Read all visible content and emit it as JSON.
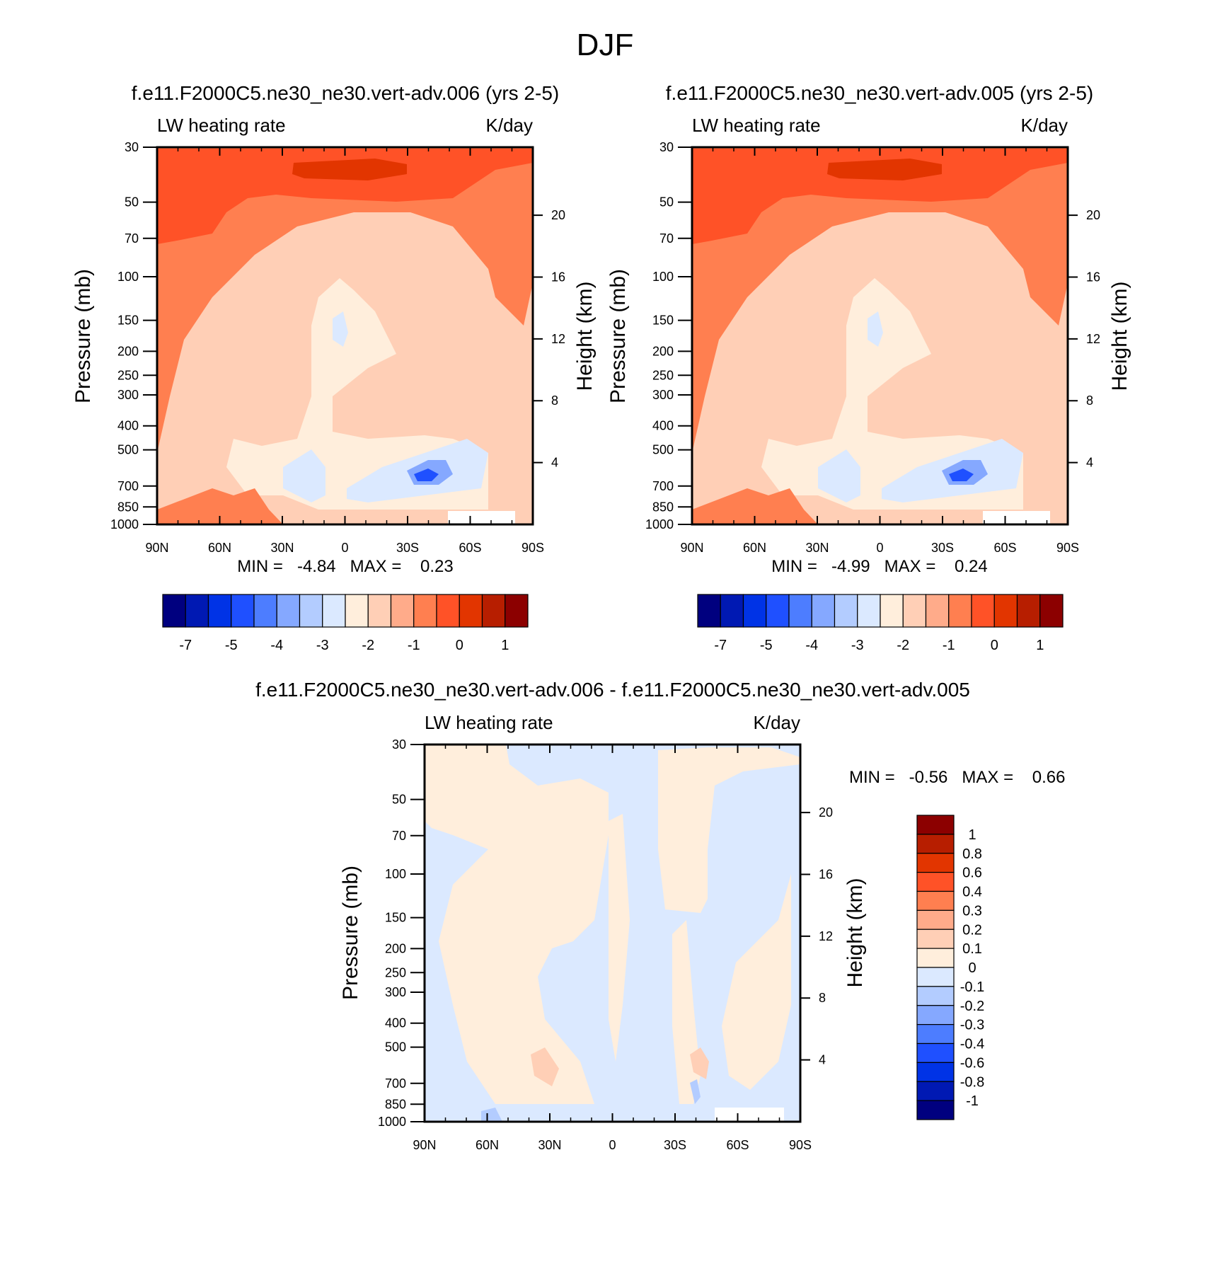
{
  "title": "DJF",
  "colors": {
    "main_scale": [
      "#00007f",
      "#0019b3",
      "#0033e6",
      "#1f50ff",
      "#4d7dff",
      "#85a8ff",
      "#b3ccff",
      "#dbe9ff",
      "#ffeedc",
      "#ffcfb6",
      "#ffab8a",
      "#ff7f50",
      "#ff5227",
      "#e23500",
      "#b71e00",
      "#8c0000"
    ],
    "diff_scale": [
      "#00007f",
      "#0019b3",
      "#0033e6",
      "#1f50ff",
      "#4d7dff",
      "#85a8ff",
      "#b3ccff",
      "#dbe9ff",
      "#ffeedc",
      "#ffcfb6",
      "#ffab8a",
      "#ff7f50",
      "#ff5227",
      "#e23500",
      "#b71e00",
      "#8c0000"
    ]
  },
  "chart_data": [
    {
      "type": "contour",
      "title": "f.e11.F2000C5.ne30_ne30.vert-adv.006 (yrs 2-5)",
      "left_subtitle": "LW heating rate",
      "right_subtitle": "K/day",
      "ylabel": "Pressure (mb)",
      "ylabel_right": "Height (km)",
      "x_ticks": [
        "90N",
        "60N",
        "30N",
        "0",
        "30S",
        "60S",
        "90S"
      ],
      "y_ticks": [
        30,
        50,
        70,
        100,
        150,
        200,
        250,
        300,
        400,
        500,
        700,
        850,
        1000
      ],
      "y_right_ticks": [
        20,
        16,
        12,
        8,
        4
      ],
      "ylim": [
        30,
        1000
      ],
      "min_max": "MIN =   -4.84   MAX =    0.23",
      "colorbar": {
        "orientation": "horizontal",
        "labels": [
          "-7",
          "-5",
          "-4",
          "-3",
          "-2",
          "-1",
          "0",
          "1"
        ]
      }
    },
    {
      "type": "contour",
      "title": "f.e11.F2000C5.ne30_ne30.vert-adv.005 (yrs 2-5)",
      "left_subtitle": "LW heating rate",
      "right_subtitle": "K/day",
      "ylabel": "Pressure (mb)",
      "ylabel_right": "Height (km)",
      "x_ticks": [
        "90N",
        "60N",
        "30N",
        "0",
        "30S",
        "60S",
        "90S"
      ],
      "y_ticks": [
        30,
        50,
        70,
        100,
        150,
        200,
        250,
        300,
        400,
        500,
        700,
        850,
        1000
      ],
      "y_right_ticks": [
        20,
        16,
        12,
        8,
        4
      ],
      "ylim": [
        30,
        1000
      ],
      "min_max": "MIN =   -4.99   MAX =    0.24",
      "colorbar": {
        "orientation": "horizontal",
        "labels": [
          "-7",
          "-5",
          "-4",
          "-3",
          "-2",
          "-1",
          "0",
          "1"
        ]
      }
    },
    {
      "type": "contour",
      "title": "f.e11.F2000C5.ne30_ne30.vert-adv.006 - f.e11.F2000C5.ne30_ne30.vert-adv.005",
      "left_subtitle": "LW heating rate",
      "right_subtitle": "K/day",
      "ylabel": "Pressure (mb)",
      "ylabel_right": "Height (km)",
      "x_ticks": [
        "90N",
        "60N",
        "30N",
        "0",
        "30S",
        "60S",
        "90S"
      ],
      "y_ticks": [
        30,
        50,
        70,
        100,
        150,
        200,
        250,
        300,
        400,
        500,
        700,
        850,
        1000
      ],
      "y_right_ticks": [
        20,
        16,
        12,
        8,
        4
      ],
      "ylim": [
        30,
        1000
      ],
      "min_max": "MIN =   -0.56   MAX =    0.66",
      "colorbar": {
        "orientation": "vertical",
        "labels": [
          "1",
          "0.8",
          "0.6",
          "0.4",
          "0.3",
          "0.2",
          "0.1",
          "0",
          "-0.1",
          "-0.2",
          "-0.3",
          "-0.4",
          "-0.6",
          "-0.8",
          "-1"
        ]
      }
    }
  ]
}
